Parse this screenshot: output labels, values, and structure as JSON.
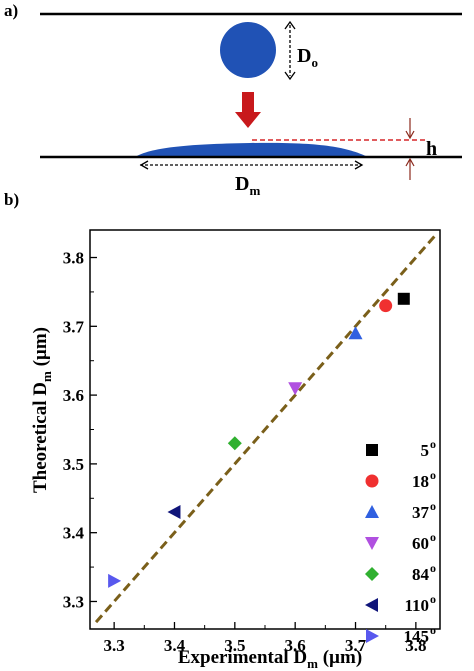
{
  "panel_a": {
    "label": "a)",
    "drop_diameter_label": "D",
    "drop_diameter_sub": "o",
    "spread_diameter_label": "D",
    "spread_diameter_sub": "m",
    "height_label": "h",
    "colors": {
      "droplet": "#2052b5",
      "arrow": "#c8191c",
      "height_line": "#d62728",
      "height_arrow": "#8b2a1d"
    }
  },
  "panel_b": {
    "label": "b)"
  },
  "chart_data": {
    "type": "scatter",
    "xlabel": "Experimental D",
    "xlabel_sub": "m",
    "xlabel_unit": " (µm)",
    "ylabel": "Theoretical D",
    "ylabel_sub": "m",
    "ylabel_unit": " (µm)",
    "xlim": [
      3.26,
      3.84
    ],
    "ylim": [
      3.26,
      3.84
    ],
    "xticks": [
      3.3,
      3.4,
      3.5,
      3.6,
      3.7,
      3.8
    ],
    "yticks": [
      3.3,
      3.4,
      3.5,
      3.6,
      3.7,
      3.8
    ],
    "xtick_labels": [
      "3.3",
      "3.4",
      "3.5",
      "3.6",
      "3.7",
      "3.8"
    ],
    "ytick_labels": [
      "3.3",
      "3.4",
      "3.5",
      "3.6",
      "3.7",
      "3.8"
    ],
    "grid": false,
    "legend_position": "right",
    "reference_line": {
      "style": "dashed",
      "color": "#7a5f1a",
      "from": [
        3.27,
        3.27
      ],
      "to": [
        3.835,
        3.835
      ]
    },
    "series": [
      {
        "name": "5",
        "degree": "o",
        "marker": "square",
        "color": "#000000",
        "x": 3.78,
        "y": 3.74
      },
      {
        "name": "18",
        "degree": "o",
        "marker": "circle",
        "color": "#f03030",
        "x": 3.75,
        "y": 3.73
      },
      {
        "name": "37",
        "degree": "o",
        "marker": "triangle-up",
        "color": "#3060e0",
        "x": 3.7,
        "y": 3.69
      },
      {
        "name": "60",
        "degree": "o",
        "marker": "triangle-down",
        "color": "#b050e0",
        "x": 3.6,
        "y": 3.61
      },
      {
        "name": "84",
        "degree": "o",
        "marker": "diamond",
        "color": "#30b030",
        "x": 3.5,
        "y": 3.53
      },
      {
        "name": "110",
        "degree": "o",
        "marker": "triangle-left",
        "color": "#10157a",
        "x": 3.4,
        "y": 3.43
      },
      {
        "name": "145",
        "degree": "o",
        "marker": "triangle-right",
        "color": "#5858ee",
        "x": 3.3,
        "y": 3.33
      }
    ]
  }
}
